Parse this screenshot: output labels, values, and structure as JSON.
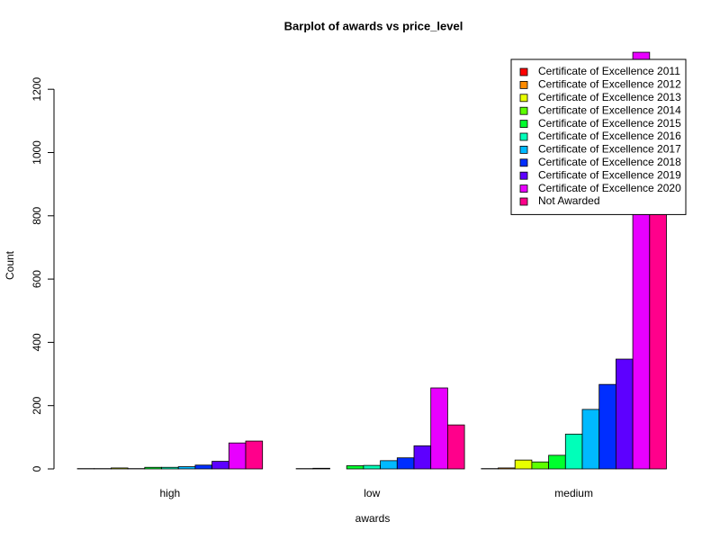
{
  "chart_data": {
    "type": "bar",
    "title": "Barplot of awards vs price_level",
    "x_label": "awards",
    "y_label": "Count",
    "categories": [
      "high",
      "low",
      "medium"
    ],
    "series": [
      {
        "name": "Certificate of Excellence 2011",
        "color": "#FF0000",
        "values": [
          1,
          0,
          1
        ]
      },
      {
        "name": "Certificate of Excellence 2012",
        "color": "#FF8B00",
        "values": [
          1,
          1,
          3
        ]
      },
      {
        "name": "Certificate of Excellence 2013",
        "color": "#E8FF00",
        "values": [
          3,
          2,
          28
        ]
      },
      {
        "name": "Certificate of Excellence 2014",
        "color": "#5DFF00",
        "values": [
          1,
          0,
          22
        ]
      },
      {
        "name": "Certificate of Excellence 2015",
        "color": "#00FF2E",
        "values": [
          5,
          10,
          43
        ]
      },
      {
        "name": "Certificate of Excellence 2016",
        "color": "#00FFB9",
        "values": [
          5,
          11,
          110
        ]
      },
      {
        "name": "Certificate of Excellence 2017",
        "color": "#00B9FF",
        "values": [
          7,
          26,
          188
        ]
      },
      {
        "name": "Certificate of Excellence 2018",
        "color": "#002EFF",
        "values": [
          12,
          35,
          267
        ]
      },
      {
        "name": "Certificate of Excellence 2019",
        "color": "#5D00FF",
        "values": [
          24,
          73,
          347
        ]
      },
      {
        "name": "Certificate of Excellence 2020",
        "color": "#E800FF",
        "values": [
          82,
          256,
          1317
        ]
      },
      {
        "name": "Not Awarded",
        "color": "#FF008B",
        "values": [
          88,
          139,
          870
        ]
      }
    ],
    "ylim": [
      0,
      1320
    ],
    "yticks": [
      0,
      200,
      400,
      600,
      800,
      1000,
      1200
    ],
    "legend": "topright"
  }
}
